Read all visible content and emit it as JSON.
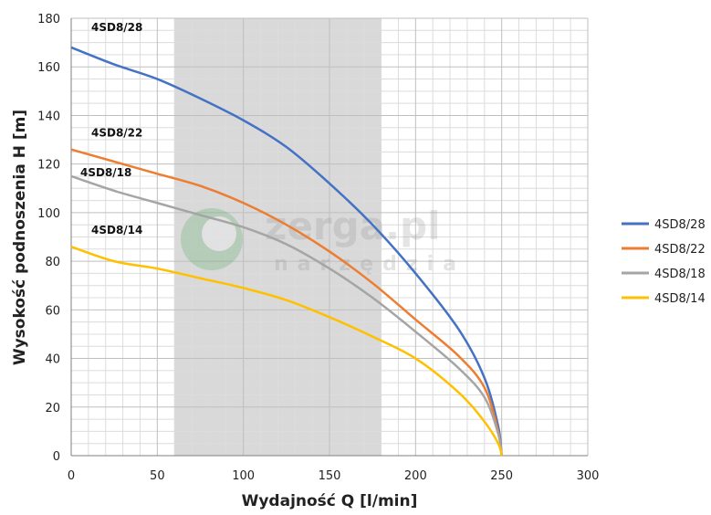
{
  "chart_data": {
    "type": "line",
    "xlabel": "Wydajność Q [l/min]",
    "ylabel": "Wysokość podnoszenia H [m]",
    "xlim": [
      0,
      300
    ],
    "ylim": [
      0,
      180
    ],
    "xticks": [
      "0",
      "50",
      "100",
      "150",
      "200",
      "250",
      "300"
    ],
    "yticks": [
      "0",
      "20",
      "40",
      "60",
      "80",
      "100",
      "120",
      "140",
      "160",
      "180"
    ],
    "grid": true,
    "legend_position": "right",
    "highlight_band": {
      "x_from": 60,
      "x_to": 180,
      "color": "#d9d9d9"
    },
    "watermark": {
      "text": "zerga.pl",
      "subtext": "narzędzia"
    },
    "series": [
      {
        "name": "4SD8/28",
        "color": "#4472c4",
        "label": "4SD8/28",
        "x": [
          0,
          25,
          50,
          75,
          100,
          125,
          150,
          175,
          200,
          225,
          240,
          248,
          250
        ],
        "y": [
          168,
          161,
          155,
          147,
          138,
          127,
          112,
          95,
          75,
          52,
          32,
          12,
          0
        ]
      },
      {
        "name": "4SD8/22",
        "color": "#ed7d31",
        "label": "4SD8/22",
        "x": [
          0,
          25,
          50,
          75,
          100,
          125,
          150,
          175,
          200,
          225,
          240,
          248,
          250
        ],
        "y": [
          126,
          121,
          116,
          111,
          104,
          95,
          84,
          71,
          56,
          41,
          28,
          10,
          0
        ]
      },
      {
        "name": "4SD8/18",
        "color": "#a5a5a5",
        "label": "4SD8/18",
        "x": [
          0,
          25,
          50,
          75,
          100,
          125,
          150,
          175,
          200,
          225,
          240,
          248,
          250
        ],
        "y": [
          115,
          109,
          104,
          99,
          94,
          87,
          77,
          65,
          51,
          36,
          24,
          9,
          0
        ]
      },
      {
        "name": "4SD8/14",
        "color": "#ffc000",
        "label": "4SD8/14",
        "x": [
          0,
          25,
          50,
          75,
          100,
          125,
          150,
          175,
          200,
          225,
          240,
          248,
          250
        ],
        "y": [
          86,
          80,
          77,
          73,
          69,
          64,
          57,
          49,
          40,
          26,
          14,
          5,
          0
        ]
      }
    ]
  }
}
